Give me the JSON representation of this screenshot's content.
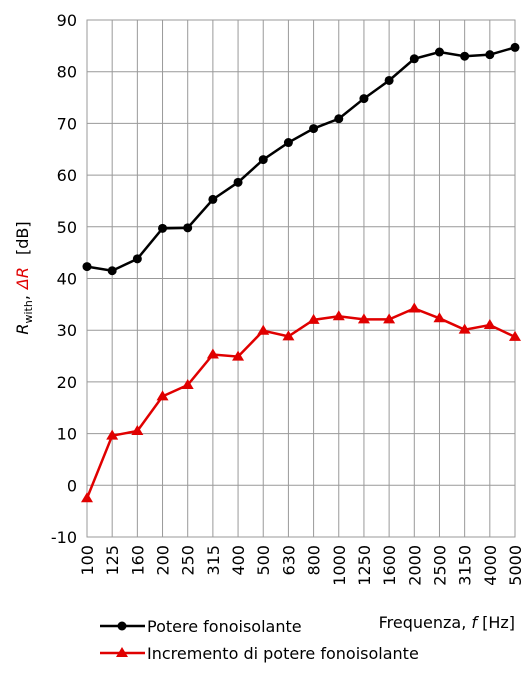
{
  "chart_data": {
    "type": "line",
    "ylabel_parts": [
      "R",
      "with",
      ",",
      "ΔR",
      "[dB]"
    ],
    "xlabel_parts": [
      "Frequenza, ",
      "f",
      " [Hz]"
    ],
    "categories": [
      "100",
      "125",
      "160",
      "200",
      "250",
      "315",
      "400",
      "500",
      "630",
      "800",
      "1000",
      "1250",
      "1600",
      "2000",
      "2500",
      "3150",
      "4000",
      "5000"
    ],
    "series": [
      {
        "name": "Potere fonoisolante",
        "color": "#000000",
        "marker": "circle",
        "values": [
          42.3,
          41.5,
          43.8,
          49.7,
          49.8,
          55.3,
          58.6,
          63.0,
          66.3,
          69.0,
          70.9,
          74.8,
          78.3,
          82.5,
          83.8,
          83.0,
          83.3,
          84.7
        ]
      },
      {
        "name": "Incremento di potere fonoisolante",
        "color": "#e00000",
        "marker": "triangle",
        "values": [
          -2.5,
          9.6,
          10.5,
          17.2,
          19.4,
          25.3,
          24.9,
          29.9,
          28.8,
          32.0,
          32.7,
          32.1,
          32.1,
          34.2,
          32.3,
          30.1,
          31.0,
          28.7
        ]
      }
    ],
    "ylim": [
      -10,
      90
    ],
    "yticks": [
      -10,
      0,
      10,
      20,
      30,
      40,
      50,
      60,
      70,
      80,
      90
    ],
    "grid": true,
    "legend": "bottom"
  }
}
